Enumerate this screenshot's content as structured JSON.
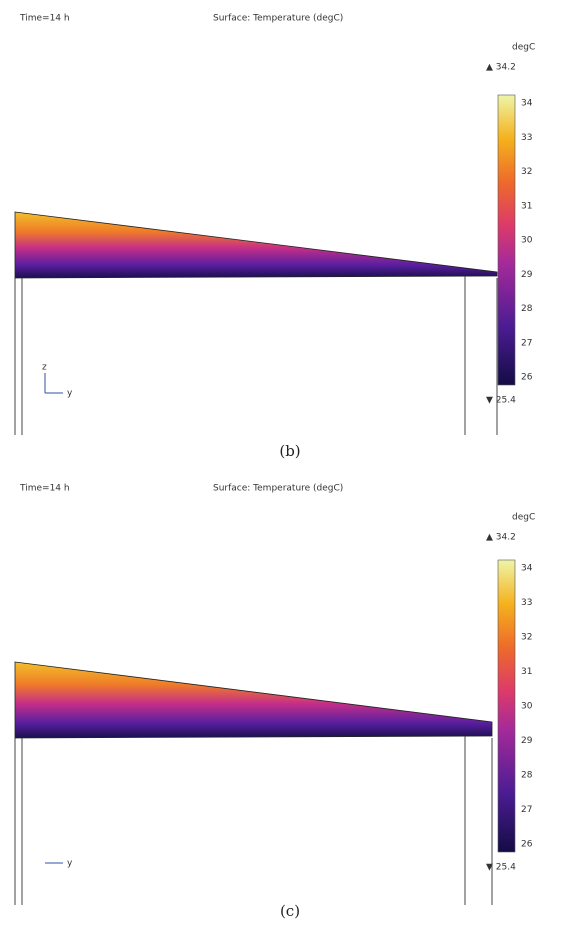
{
  "panels": [
    {
      "time": "Time=14 h",
      "surface": "Surface: Temperature (degC)",
      "unit": "degC",
      "max_label": "▲ 34.2",
      "min_label": "▼ 25.4",
      "colorbar_ticks": [
        34,
        33,
        32,
        31,
        30,
        29,
        28,
        27,
        26
      ],
      "axis_labels": [
        "z",
        "y"
      ],
      "caption": "(b)"
    },
    {
      "time": "Time=14 h",
      "surface": "Surface: Temperature (degC)",
      "unit": "degC",
      "max_label": "▲ 34.2",
      "min_label": "▼ 25.4",
      "colorbar_ticks": [
        34,
        33,
        32,
        31,
        30,
        29,
        28,
        27,
        26
      ],
      "axis_labels": [
        "y"
      ],
      "caption": "(c)"
    }
  ]
}
